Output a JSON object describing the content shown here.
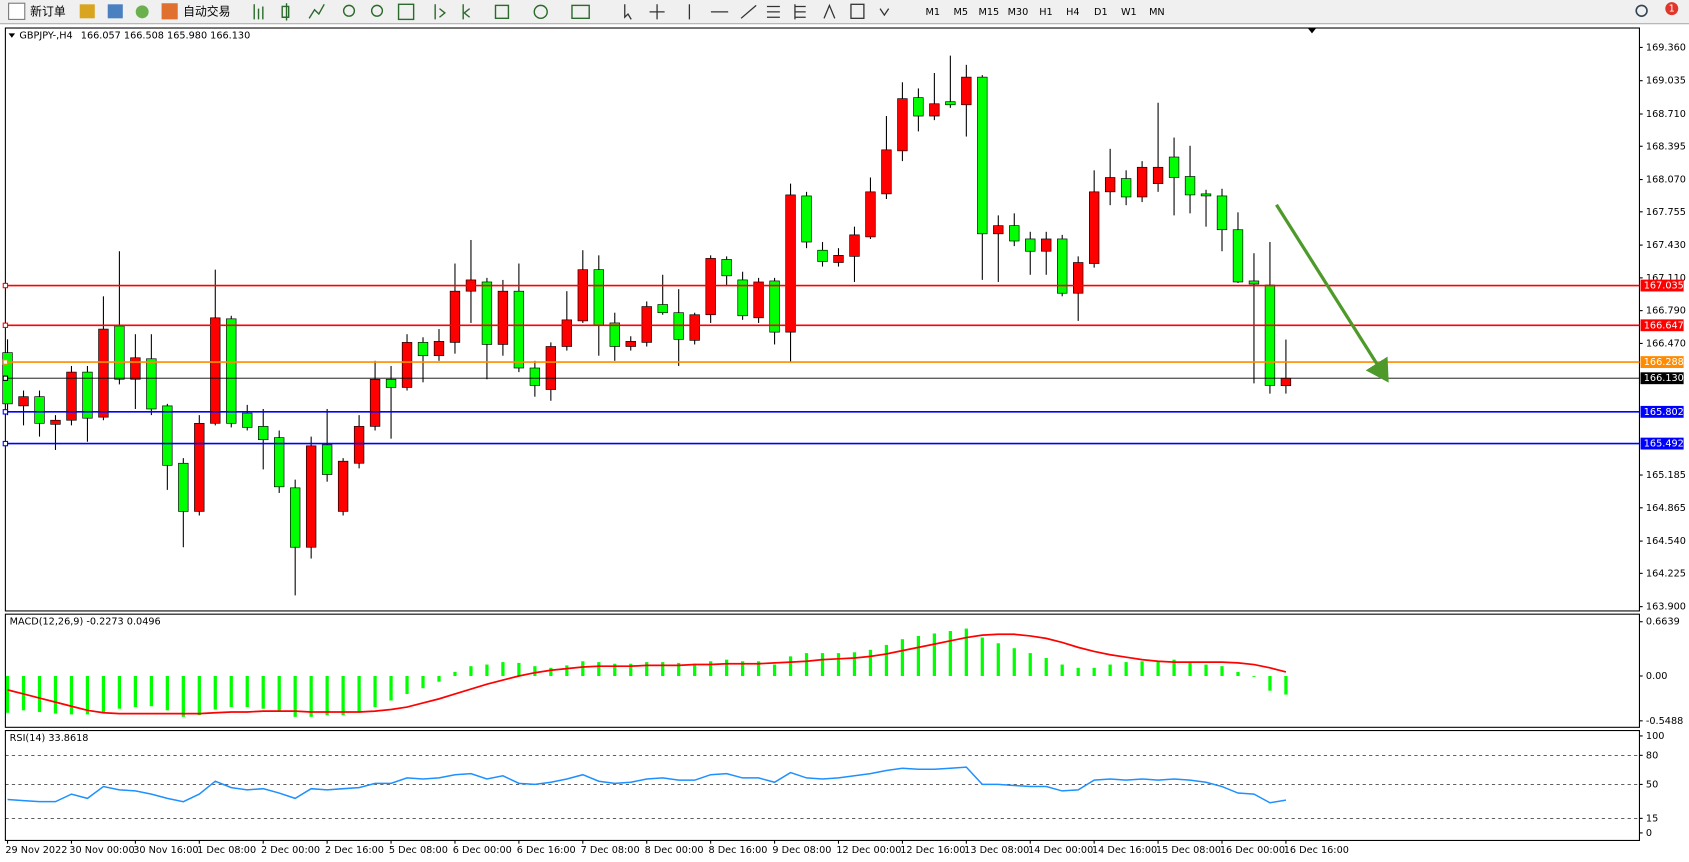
{
  "toolbar": {
    "new_order": "新订单",
    "auto_trading": "自动交易",
    "timeframes": [
      "M1",
      "M5",
      "M15",
      "M30",
      "H1",
      "H4",
      "D1",
      "W1",
      "MN"
    ],
    "notification": "1"
  },
  "chart_data": [
    {
      "type": "candlestick",
      "title": "GBPJPY-,H4",
      "subtitle": "166.057 166.508 165.980 166.130",
      "categories": [
        "29 Nov 2022",
        null,
        null,
        null,
        "30 Nov 00:00",
        null,
        null,
        null,
        "30 Nov 16:00",
        null,
        null,
        null,
        "1 Dec 08:00",
        null,
        null,
        null,
        "2 Dec 00:00",
        null,
        null,
        null,
        "2 Dec 16:00",
        null,
        null,
        null,
        "5 Dec 08:00",
        null,
        null,
        null,
        "6 Dec 00:00",
        null,
        null,
        null,
        "6 Dec 16:00",
        null,
        null,
        null,
        "7 Dec 08:00",
        null,
        null,
        null,
        "8 Dec 00:00",
        null,
        null,
        null,
        "8 Dec 16:00",
        null,
        null,
        null,
        "9 Dec 08:00",
        null,
        null,
        null,
        "12 Dec 00:00",
        null,
        null,
        null,
        "12 Dec 16:00",
        null,
        null,
        null,
        "13 Dec 08:00",
        null,
        null,
        null,
        "14 Dec 00:00",
        null,
        null,
        null,
        "14 Dec 16:00",
        null,
        null,
        null,
        "15 Dec 08:00",
        null,
        null,
        null,
        "16 Dec 00:00",
        null,
        null,
        null,
        "16 Dec 16:00"
      ],
      "open": [
        166.38,
        165.86,
        165.95,
        165.68,
        165.72,
        166.19,
        165.75,
        166.64,
        166.12,
        166.32,
        165.86,
        165.3,
        164.83,
        165.69,
        166.71,
        165.79,
        165.66,
        165.55,
        165.06,
        164.48,
        165.48,
        164.83,
        165.3,
        165.66,
        166.12,
        166.04,
        166.48,
        166.35,
        166.48,
        166.98,
        167.07,
        166.46,
        166.98,
        166.23,
        166.02,
        166.44,
        166.69,
        167.19,
        166.67,
        166.44,
        166.48,
        166.85,
        166.77,
        166.5,
        166.75,
        167.29,
        167.09,
        166.72,
        167.08,
        166.58,
        167.91,
        167.38,
        167.26,
        167.32,
        167.51,
        167.93,
        168.35,
        168.87,
        168.69,
        168.83,
        168.8,
        169.07,
        167.54,
        167.62,
        167.49,
        167.37,
        167.49,
        166.96,
        167.25,
        167.95,
        168.08,
        167.9,
        168.03,
        168.29,
        168.1,
        167.93,
        167.91,
        167.58,
        167.08,
        167.04,
        166.057
      ],
      "high": [
        166.51,
        166.01,
        166.01,
        165.77,
        166.25,
        166.25,
        166.93,
        167.37,
        166.56,
        166.56,
        165.88,
        165.35,
        165.77,
        167.19,
        166.74,
        165.87,
        165.83,
        165.62,
        165.14,
        165.56,
        165.83,
        165.35,
        165.77,
        166.3,
        166.25,
        166.56,
        166.53,
        166.61,
        167.25,
        167.48,
        167.11,
        167.09,
        167.25,
        166.3,
        166.48,
        166.98,
        167.38,
        167.33,
        166.77,
        166.54,
        166.88,
        167.14,
        167.0,
        166.77,
        167.33,
        167.32,
        167.17,
        167.11,
        167.11,
        168.03,
        167.95,
        167.46,
        167.4,
        167.61,
        168.09,
        168.69,
        169.02,
        168.96,
        169.11,
        169.28,
        169.19,
        169.09,
        167.72,
        167.74,
        167.56,
        167.56,
        167.53,
        167.32,
        168.16,
        168.37,
        168.16,
        168.25,
        168.82,
        168.48,
        168.4,
        167.97,
        167.98,
        167.75,
        167.35,
        167.46,
        166.508
      ],
      "low": [
        165.77,
        165.67,
        165.56,
        165.43,
        165.67,
        165.51,
        165.72,
        166.07,
        165.83,
        165.77,
        165.04,
        164.48,
        164.79,
        165.67,
        165.65,
        165.62,
        165.24,
        165.01,
        164.01,
        164.37,
        165.12,
        164.79,
        165.25,
        165.62,
        165.54,
        166.01,
        166.09,
        166.3,
        166.37,
        166.67,
        166.12,
        166.35,
        166.19,
        165.95,
        165.91,
        166.4,
        166.67,
        166.35,
        166.3,
        166.4,
        166.44,
        166.75,
        166.25,
        166.46,
        166.67,
        167.04,
        166.7,
        166.67,
        166.46,
        166.29,
        167.4,
        167.22,
        167.22,
        167.07,
        167.49,
        167.88,
        168.25,
        168.54,
        168.65,
        168.77,
        168.49,
        167.09,
        167.07,
        167.42,
        167.14,
        167.14,
        166.93,
        166.69,
        167.21,
        167.82,
        167.82,
        167.85,
        167.95,
        167.72,
        167.74,
        167.61,
        167.37,
        167.06,
        166.08,
        165.98,
        165.98
      ],
      "close": [
        165.88,
        165.95,
        165.69,
        165.72,
        166.19,
        165.74,
        166.61,
        166.12,
        166.33,
        165.83,
        165.28,
        164.83,
        165.69,
        166.72,
        165.69,
        165.65,
        165.53,
        165.07,
        164.48,
        165.47,
        165.19,
        165.32,
        165.66,
        166.12,
        166.04,
        166.48,
        166.35,
        166.49,
        166.98,
        167.09,
        166.46,
        166.98,
        166.23,
        166.06,
        166.44,
        166.7,
        167.19,
        166.65,
        166.44,
        166.49,
        166.83,
        166.77,
        166.51,
        166.75,
        167.3,
        167.13,
        166.74,
        167.07,
        166.58,
        167.92,
        167.46,
        167.27,
        167.33,
        167.53,
        167.95,
        168.36,
        168.86,
        168.69,
        168.81,
        168.8,
        169.07,
        167.54,
        167.62,
        167.47,
        167.37,
        167.49,
        166.96,
        167.26,
        167.95,
        168.09,
        167.9,
        168.19,
        168.19,
        168.09,
        167.92,
        167.91,
        167.58,
        167.07,
        167.05,
        166.06,
        166.13
      ],
      "up_color": "#ff0000",
      "down_color": "#00ff00",
      "ylim": [
        163.858,
        169.539
      ],
      "yticks": [
        {
          "value": 169.36,
          "label": "169.360"
        },
        169.035,
        {
          "value": 168.71,
          "label": "168.710"
        },
        168.395,
        {
          "value": 168.07,
          "label": "168.070"
        },
        167.755,
        {
          "value": 167.43,
          "label": "167.430"
        },
        {
          "value": 167.11,
          "label": "167.110"
        },
        {
          "value": 166.79,
          "label": "166.790"
        },
        {
          "value": 166.47,
          "label": "166.470"
        },
        165.185,
        164.865,
        {
          "value": 164.54,
          "label": "164.540"
        },
        164.225,
        {
          "value": 163.9,
          "label": "163.900"
        }
      ],
      "hlines": [
        {
          "value": 167.035,
          "color": "#ff0000"
        },
        {
          "value": 166.647,
          "color": "#ff0000"
        },
        {
          "value": 166.288,
          "color": "#ff8c00"
        },
        {
          "value": 166.13,
          "label": "166.130",
          "color": "#000000"
        },
        {
          "value": 165.802,
          "color": "#0000ff"
        },
        {
          "value": 165.492,
          "color": "#0000ff"
        }
      ]
    },
    {
      "type": "macd",
      "title": "MACD(12,26,9) -0.2273 0.0496",
      "series": [
        {
          "kind": "bar",
          "color": "#00ff00",
          "values": [
            -0.45,
            -0.42,
            -0.44,
            -0.46,
            -0.47,
            -0.47,
            -0.44,
            -0.4,
            -0.38,
            -0.37,
            -0.42,
            -0.5,
            -0.48,
            -0.41,
            -0.38,
            -0.38,
            -0.4,
            -0.43,
            -0.5,
            -0.5,
            -0.48,
            -0.48,
            -0.44,
            -0.38,
            -0.3,
            -0.22,
            -0.15,
            -0.07,
            0.05,
            0.12,
            0.14,
            0.17,
            0.16,
            0.12,
            0.1,
            0.13,
            0.18,
            0.17,
            0.15,
            0.15,
            0.17,
            0.17,
            0.16,
            0.15,
            0.18,
            0.2,
            0.18,
            0.18,
            0.14,
            0.24,
            0.28,
            0.28,
            0.28,
            0.29,
            0.32,
            0.38,
            0.45,
            0.49,
            0.52,
            0.55,
            0.58,
            0.47,
            0.4,
            0.34,
            0.28,
            0.22,
            0.14,
            0.1,
            0.1,
            0.14,
            0.17,
            0.18,
            0.18,
            0.2,
            0.16,
            0.14,
            0.12,
            0.05,
            -0.01,
            -0.18,
            -0.2273
          ]
        },
        {
          "kind": "line",
          "color": "#ff0000",
          "values": [
            -0.17,
            -0.22,
            -0.27,
            -0.32,
            -0.37,
            -0.42,
            -0.45,
            -0.46,
            -0.46,
            -0.46,
            -0.46,
            -0.46,
            -0.46,
            -0.45,
            -0.44,
            -0.44,
            -0.43,
            -0.43,
            -0.43,
            -0.44,
            -0.44,
            -0.44,
            -0.44,
            -0.43,
            -0.41,
            -0.38,
            -0.33,
            -0.28,
            -0.22,
            -0.16,
            -0.1,
            -0.05,
            0.0,
            0.04,
            0.07,
            0.09,
            0.11,
            0.12,
            0.12,
            0.12,
            0.13,
            0.13,
            0.13,
            0.14,
            0.14,
            0.15,
            0.15,
            0.15,
            0.16,
            0.17,
            0.18,
            0.2,
            0.21,
            0.22,
            0.24,
            0.27,
            0.31,
            0.35,
            0.39,
            0.43,
            0.47,
            0.5,
            0.51,
            0.51,
            0.49,
            0.46,
            0.41,
            0.35,
            0.3,
            0.26,
            0.23,
            0.2,
            0.18,
            0.17,
            0.17,
            0.17,
            0.17,
            0.16,
            0.14,
            0.1,
            0.0496
          ]
        }
      ],
      "ylim": [
        -0.5488,
        0.6639
      ],
      "yticks": [
        0.6639,
        {
          "value": 0,
          "label": "0.00"
        },
        -0.5488
      ]
    },
    {
      "type": "line",
      "title": "RSI(14) 33.8618",
      "series": [
        {
          "color": "#1e90ff",
          "values": [
            34.4,
            33.3,
            32.2,
            32.2,
            40.0,
            35.6,
            47.8,
            44.4,
            43.3,
            40.0,
            35.6,
            32.2,
            40.0,
            53.3,
            46.7,
            44.4,
            45.6,
            41.1,
            35.6,
            45.6,
            44.4,
            45.6,
            46.7,
            51.1,
            51.1,
            56.7,
            55.6,
            56.7,
            60.0,
            61.1,
            55.6,
            58.9,
            51.1,
            50.0,
            52.2,
            55.6,
            60.0,
            53.3,
            51.1,
            52.2,
            55.6,
            56.7,
            54.4,
            54.4,
            60.0,
            61.1,
            56.7,
            56.7,
            52.2,
            62.2,
            56.7,
            55.6,
            56.7,
            58.9,
            61.1,
            64.4,
            66.7,
            65.6,
            65.6,
            66.7,
            67.8,
            50.0,
            50.0,
            48.9,
            47.8,
            47.8,
            43.3,
            44.4,
            54.4,
            55.6,
            54.4,
            55.6,
            54.4,
            55.6,
            54.4,
            52.2,
            47.8,
            41.1,
            40.0,
            31.1,
            33.8618
          ]
        }
      ],
      "ylim": [
        0,
        100
      ],
      "yticks": [
        100,
        80,
        50,
        15,
        0
      ],
      "grid": "dashed"
    }
  ]
}
